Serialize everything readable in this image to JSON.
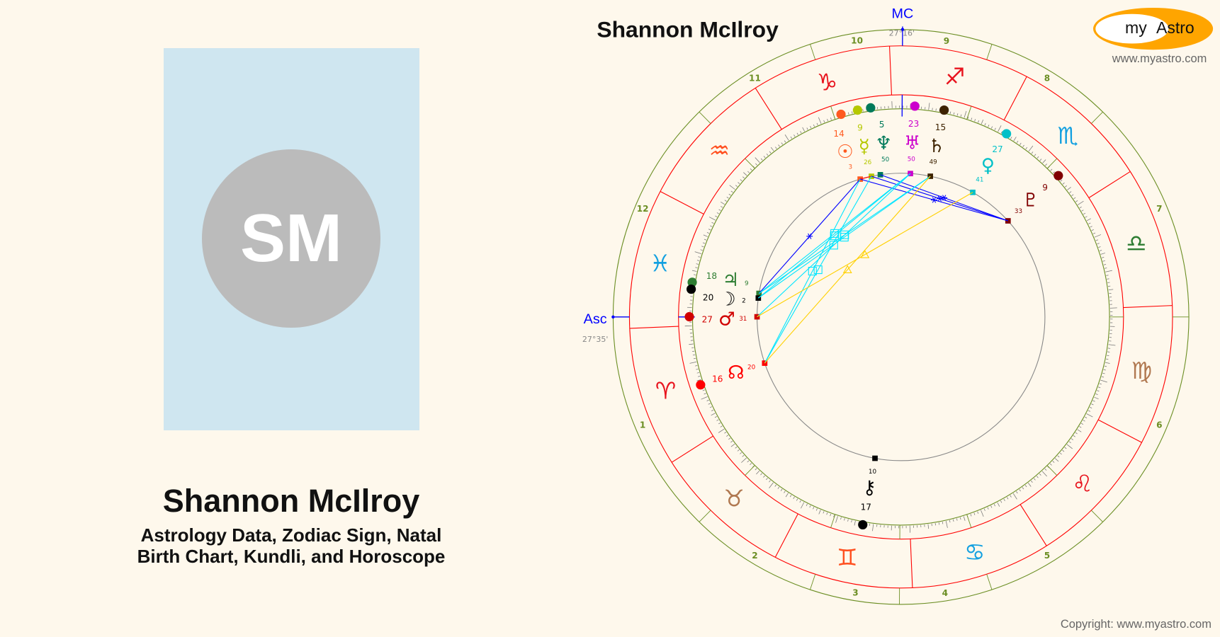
{
  "profile": {
    "initials": "SM",
    "name": "Shannon McIlroy",
    "subtitle_line1": "Astrology Data, Zodiac Sign, Natal",
    "subtitle_line2": "Birth Chart, Kundli, and Horoscope",
    "photo_bg": "#cfe6f0",
    "avatar_bg": "#bbbbbb"
  },
  "chart_header": {
    "title": "Shannon McIlroy"
  },
  "logo": {
    "text_my": "my",
    "text_astro": "Astro",
    "url": "www.myastro.com",
    "color": "#ffa500"
  },
  "copyright": "Copyright: www.myastro.com",
  "chart_data": {
    "type": "natal-wheel",
    "angles": {
      "asc": {
        "label": "Asc",
        "position": "27°35'",
        "longitude": 357.58,
        "color": "#0000ff"
      },
      "mc": {
        "label": "MC",
        "position": "27°16'",
        "longitude": 267.27,
        "color": "#0000ff"
      }
    },
    "house_cusps": [
      {
        "house": "1",
        "longitude": 357.58
      },
      {
        "house": "2",
        "longitude": 43.08
      },
      {
        "house": "3",
        "longitude": 69.18
      },
      {
        "house": "4",
        "longitude": 87.27
      },
      {
        "house": "5",
        "longitude": 105.98
      },
      {
        "house": "6",
        "longitude": 132.08
      },
      {
        "house": "7",
        "longitude": 177.58
      },
      {
        "house": "8",
        "longitude": 223.08
      },
      {
        "house": "9",
        "longitude": 249.18
      },
      {
        "house": "10",
        "longitude": 267.27
      },
      {
        "house": "11",
        "longitude": 285.98
      },
      {
        "house": "12",
        "longitude": 312.08
      }
    ],
    "signs": [
      {
        "name": "Aries",
        "glyph": "♈",
        "color": "#e8141e"
      },
      {
        "name": "Taurus",
        "glyph": "♉",
        "color": "#b07850"
      },
      {
        "name": "Gemini",
        "glyph": "♊",
        "color": "#ff4f1f"
      },
      {
        "name": "Cancer",
        "glyph": "♋",
        "color": "#13a0e0"
      },
      {
        "name": "Leo",
        "glyph": "♌",
        "color": "#e8141e"
      },
      {
        "name": "Virgo",
        "glyph": "♍",
        "color": "#b07850"
      },
      {
        "name": "Libra",
        "glyph": "♎",
        "color": "#2e7d32"
      },
      {
        "name": "Scorpio",
        "glyph": "♏",
        "color": "#13a0e0"
      },
      {
        "name": "Sagittarius",
        "glyph": "♐",
        "color": "#e8141e"
      },
      {
        "name": "Capricorn",
        "glyph": "♑",
        "color": "#e8141e"
      },
      {
        "name": "Aquarius",
        "glyph": "♒",
        "color": "#ff4f1f"
      },
      {
        "name": "Pisces",
        "glyph": "♓",
        "color": "#13a0e0"
      }
    ],
    "planets": [
      {
        "name": "Sun",
        "glyph": "☉",
        "degree": "14",
        "minute": "3",
        "longitude": 284.05,
        "color": "#ff5a1f"
      },
      {
        "name": "Mercury",
        "glyph": "☿",
        "degree": "9",
        "minute": "26",
        "longitude": 279.43,
        "color": "#b5c800"
      },
      {
        "name": "Neptune",
        "glyph": "♆",
        "degree": "5",
        "minute": "50",
        "longitude": 275.83,
        "color": "#007a5a"
      },
      {
        "name": "Uranus",
        "glyph": "♅",
        "degree": "23",
        "minute": "50",
        "longitude": 263.83,
        "color": "#cc00cc"
      },
      {
        "name": "Saturn",
        "glyph": "♄",
        "degree": "15",
        "minute": "49",
        "longitude": 255.82,
        "color": "#3d2200"
      },
      {
        "name": "Venus",
        "glyph": "♀",
        "degree": "27",
        "minute": "41",
        "longitude": 237.68,
        "color": "#00c0c8"
      },
      {
        "name": "Pluto",
        "glyph": "♇",
        "degree": "9",
        "minute": "33",
        "longitude": 219.55,
        "color": "#800000"
      },
      {
        "name": "Jupiter",
        "glyph": "♃",
        "degree": "18",
        "minute": "9",
        "longitude": 348.15,
        "color": "#2e7d32"
      },
      {
        "name": "Moon",
        "glyph": "☽",
        "degree": "20",
        "minute": "2",
        "longitude": 350.03,
        "color": "#000000"
      },
      {
        "name": "Mars",
        "glyph": "♂",
        "degree": "27",
        "minute": "31",
        "longitude": 357.52,
        "color": "#d00000"
      },
      {
        "name": "North Node",
        "glyph": "☊",
        "degree": "16",
        "minute": "20",
        "longitude": 16.33,
        "color": "#ff0000"
      },
      {
        "name": "Chiron",
        "glyph": "⚷",
        "degree": "17",
        "minute": "10",
        "longitude": 77.17,
        "color": "#000000"
      }
    ],
    "aspect_colors": {
      "conjunction": "#ff0000",
      "sextile": "#0000ff",
      "square": "#00e5ff",
      "trine": "#ffd000"
    },
    "aspects": [
      {
        "from": "Sun",
        "to": "Mercury",
        "type": "conjunction"
      },
      {
        "from": "Sun",
        "to": "Jupiter",
        "type": "sextile"
      },
      {
        "from": "Sun",
        "to": "Pluto",
        "type": "sextile"
      },
      {
        "from": "Mercury",
        "to": "Pluto",
        "type": "sextile"
      },
      {
        "from": "Neptune",
        "to": "Pluto",
        "type": "sextile"
      },
      {
        "from": "Sun",
        "to": "North Node",
        "type": "square"
      },
      {
        "from": "Mercury",
        "to": "North Node",
        "type": "square"
      },
      {
        "from": "Uranus",
        "to": "Jupiter",
        "type": "square"
      },
      {
        "from": "Uranus",
        "to": "Moon",
        "type": "square"
      },
      {
        "from": "Saturn",
        "to": "Jupiter",
        "type": "square"
      },
      {
        "from": "Saturn",
        "to": "Moon",
        "type": "square"
      },
      {
        "from": "Uranus",
        "to": "Mars",
        "type": "square"
      },
      {
        "from": "Venus",
        "to": "Mars",
        "type": "trine"
      },
      {
        "from": "Saturn",
        "to": "North Node",
        "type": "trine"
      }
    ]
  }
}
